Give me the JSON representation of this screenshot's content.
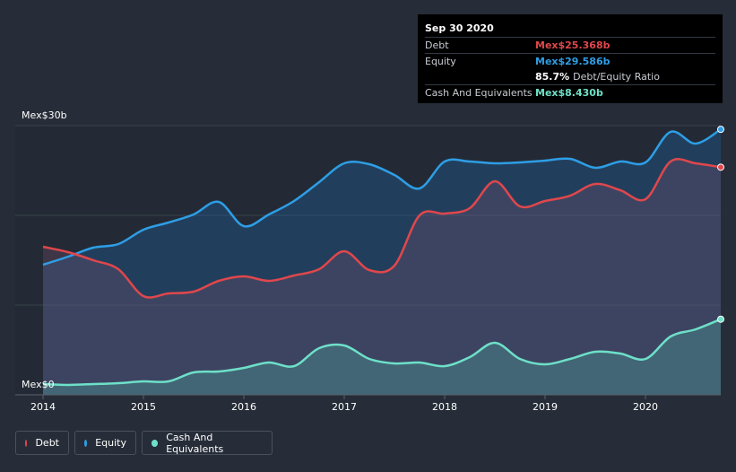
{
  "chart_data": {
    "type": "area",
    "title": "",
    "xlabel": "",
    "ylabel": "",
    "unit_prefix": "Mex$",
    "ylim": [
      0,
      30
    ],
    "y_tick_labels": [
      "Mex$30b",
      "Mex$0"
    ],
    "x_tick_labels": [
      "2014",
      "2015",
      "2016",
      "2017",
      "2018",
      "2019",
      "2020"
    ],
    "x_ticks": [
      2014,
      2015,
      2016,
      2017,
      2018,
      2019,
      2020
    ],
    "xlim": [
      2014,
      2020.75
    ],
    "gridlines": [
      10,
      20,
      30
    ],
    "series": [
      {
        "name": "Debt",
        "color": "#e0474c",
        "x": [
          2014.0,
          2014.25,
          2014.5,
          2014.75,
          2015.0,
          2015.25,
          2015.5,
          2015.75,
          2016.0,
          2016.25,
          2016.5,
          2016.75,
          2017.0,
          2017.25,
          2017.5,
          2017.75,
          2018.0,
          2018.25,
          2018.5,
          2018.75,
          2019.0,
          2019.25,
          2019.5,
          2019.75,
          2020.0,
          2020.25,
          2020.5,
          2020.75
        ],
        "values": [
          16.5,
          15.9,
          15.0,
          14.0,
          11.0,
          11.3,
          11.5,
          12.7,
          13.2,
          12.7,
          13.3,
          14.0,
          16.0,
          13.9,
          14.4,
          20.0,
          20.2,
          20.8,
          23.8,
          21.0,
          21.6,
          22.2,
          23.5,
          22.8,
          21.8,
          26.0,
          25.8,
          25.368
        ]
      },
      {
        "name": "Equity",
        "color": "#2e9ee6",
        "x": [
          2014.0,
          2014.25,
          2014.5,
          2014.75,
          2015.0,
          2015.25,
          2015.5,
          2015.75,
          2016.0,
          2016.25,
          2016.5,
          2016.75,
          2017.0,
          2017.25,
          2017.5,
          2017.75,
          2018.0,
          2018.25,
          2018.5,
          2018.75,
          2019.0,
          2019.25,
          2019.5,
          2019.75,
          2020.0,
          2020.25,
          2020.5,
          2020.75
        ],
        "values": [
          14.5,
          15.4,
          16.4,
          16.8,
          18.4,
          19.2,
          20.1,
          21.5,
          18.8,
          20.1,
          21.6,
          23.7,
          25.8,
          25.7,
          24.5,
          23.0,
          26.0,
          26.0,
          25.8,
          25.9,
          26.1,
          26.3,
          25.3,
          26.0,
          25.9,
          29.3,
          28.0,
          29.586
        ]
      },
      {
        "name": "Cash And Equivalents",
        "color": "#6ee0c9",
        "x": [
          2014.0,
          2014.25,
          2014.5,
          2014.75,
          2015.0,
          2015.25,
          2015.5,
          2015.75,
          2016.0,
          2016.25,
          2016.5,
          2016.75,
          2017.0,
          2017.25,
          2017.5,
          2017.75,
          2018.0,
          2018.25,
          2018.5,
          2018.75,
          2019.0,
          2019.25,
          2019.5,
          2019.75,
          2020.0,
          2020.25,
          2020.5,
          2020.75
        ],
        "values": [
          1.2,
          1.1,
          1.2,
          1.3,
          1.5,
          1.5,
          2.5,
          2.6,
          3.0,
          3.6,
          3.2,
          5.2,
          5.5,
          4.0,
          3.5,
          3.6,
          3.2,
          4.2,
          5.8,
          4.0,
          3.4,
          4.0,
          4.8,
          4.6,
          4.0,
          6.5,
          7.3,
          8.43
        ]
      }
    ]
  },
  "tooltip": {
    "date": "Sep 30 2020",
    "debt_label": "Debt",
    "debt_value": "Mex$25.368b",
    "equity_label": "Equity",
    "equity_value": "Mex$29.586b",
    "ratio_value": "85.7%",
    "ratio_label": "Debt/Equity Ratio",
    "cash_label": "Cash And Equivalents",
    "cash_value": "Mex$8.430b"
  },
  "legend": {
    "items": [
      {
        "label": "Debt",
        "color": "#e0474c"
      },
      {
        "label": "Equity",
        "color": "#2e9ee6"
      },
      {
        "label": "Cash And Equivalents",
        "color": "#6ee0c9"
      }
    ]
  }
}
